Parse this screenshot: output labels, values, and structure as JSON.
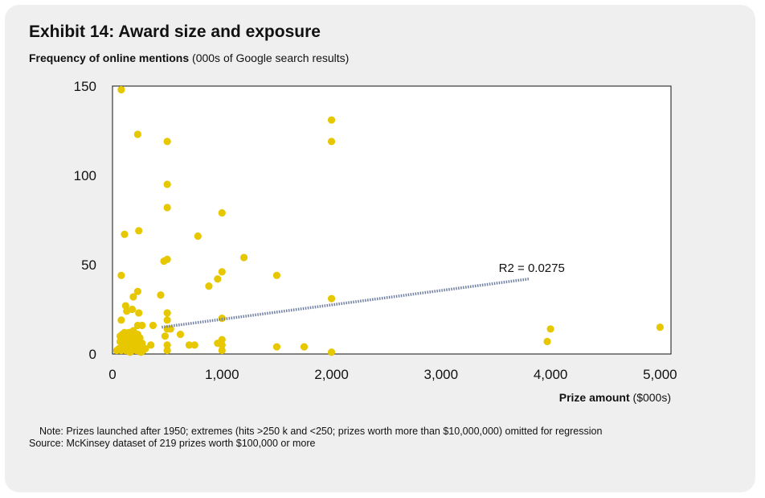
{
  "card": {
    "background": "#efefef"
  },
  "header": {
    "title": "Exhibit 14: Award size and exposure",
    "subtitle_bold": "Frequency of online mentions",
    "subtitle_rest": " (000s of Google search results)"
  },
  "footer": {
    "note": "Note: Prizes launched after 1950; extremes (hits >250 k and <250; prizes worth more than $10,000,000) omitted for regression",
    "source": "Source: McKinsey dataset of 219 prizes worth $100,000 or more"
  },
  "chart_data": {
    "type": "scatter",
    "title": "Exhibit 14: Award size and exposure",
    "xlabel_bold": "Prize amount",
    "xlabel_rest": " ($000s)",
    "ylabel": "Frequency of online mentions (000s of Google search results)",
    "xlim": [
      0,
      5100
    ],
    "ylim": [
      0,
      150
    ],
    "xticks": [
      0,
      1000,
      2000,
      3000,
      4000,
      5000
    ],
    "xtick_labels": [
      "0",
      "1,000",
      "2,000",
      "3,000",
      "4,000",
      "5,000"
    ],
    "yticks": [
      0,
      50,
      100,
      150
    ],
    "ytick_labels": [
      "0",
      "50",
      "100",
      "150"
    ],
    "point_color": "#e6c700",
    "trend_color": "#6f7fa3",
    "trendline": {
      "x": [
        450,
        3800
      ],
      "y": [
        15,
        42
      ],
      "label": "R2 = 0.0275"
    },
    "points": [
      [
        80,
        148
      ],
      [
        230,
        123
      ],
      [
        500,
        119
      ],
      [
        500,
        95
      ],
      [
        500,
        82
      ],
      [
        1000,
        79
      ],
      [
        2000,
        131
      ],
      [
        2000,
        119
      ],
      [
        110,
        67
      ],
      [
        240,
        69
      ],
      [
        780,
        66
      ],
      [
        1200,
        54
      ],
      [
        500,
        53
      ],
      [
        470,
        52
      ],
      [
        1000,
        46
      ],
      [
        960,
        42
      ],
      [
        880,
        38
      ],
      [
        1500,
        44
      ],
      [
        80,
        44
      ],
      [
        230,
        35
      ],
      [
        440,
        33
      ],
      [
        190,
        32
      ],
      [
        2000,
        31
      ],
      [
        120,
        27
      ],
      [
        130,
        24
      ],
      [
        180,
        25
      ],
      [
        240,
        23
      ],
      [
        500,
        23
      ],
      [
        1000,
        20
      ],
      [
        500,
        19
      ],
      [
        80,
        19
      ],
      [
        230,
        16
      ],
      [
        270,
        16
      ],
      [
        370,
        16
      ],
      [
        500,
        14
      ],
      [
        530,
        14
      ],
      [
        620,
        11
      ],
      [
        480,
        10
      ],
      [
        4000,
        14
      ],
      [
        3970,
        7
      ],
      [
        5000,
        15
      ],
      [
        70,
        10
      ],
      [
        90,
        11
      ],
      [
        110,
        12
      ],
      [
        130,
        10
      ],
      [
        150,
        12
      ],
      [
        170,
        11
      ],
      [
        190,
        13
      ],
      [
        210,
        10
      ],
      [
        230,
        11
      ],
      [
        250,
        9
      ],
      [
        70,
        7
      ],
      [
        90,
        6
      ],
      [
        110,
        8
      ],
      [
        130,
        7
      ],
      [
        150,
        5
      ],
      [
        170,
        7
      ],
      [
        190,
        6
      ],
      [
        210,
        8
      ],
      [
        230,
        5
      ],
      [
        250,
        7
      ],
      [
        270,
        6
      ],
      [
        60,
        3
      ],
      [
        80,
        2
      ],
      [
        100,
        4
      ],
      [
        120,
        2
      ],
      [
        140,
        3
      ],
      [
        160,
        1
      ],
      [
        180,
        2
      ],
      [
        200,
        4
      ],
      [
        220,
        2
      ],
      [
        240,
        3
      ],
      [
        260,
        1
      ],
      [
        280,
        2
      ],
      [
        300,
        3
      ],
      [
        40,
        2
      ],
      [
        350,
        5
      ],
      [
        500,
        5
      ],
      [
        500,
        2
      ],
      [
        700,
        5
      ],
      [
        750,
        5
      ],
      [
        960,
        6
      ],
      [
        1000,
        8
      ],
      [
        1000,
        5
      ],
      [
        1000,
        2
      ],
      [
        1500,
        4
      ],
      [
        1750,
        4
      ],
      [
        2000,
        1
      ]
    ]
  }
}
